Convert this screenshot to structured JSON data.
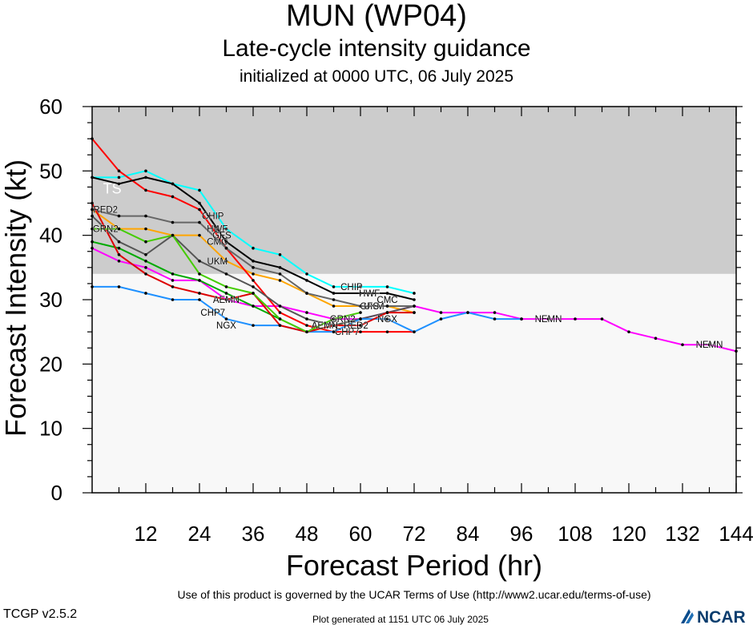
{
  "title": "MUN (WP04)",
  "subtitle": "Late-cycle intensity guidance",
  "initialized": "initialized at 0000 UTC, 06 July 2025",
  "footer": {
    "terms": "Use of this product is governed by the UCAR Terms of Use (http://www2.ucar.edu/terms-of-use)",
    "version": "TCGP v2.5.2",
    "generated": "Plot generated at 1151 UTC   06 July 2025",
    "logo_text": "NCAR"
  },
  "chart_data": {
    "type": "line",
    "title": "MUN (WP04)",
    "subtitle": "Late-cycle intensity guidance",
    "xlabel": "Forecast Period (hr)",
    "ylabel": "Forecast Intensity (kt)",
    "xlim": [
      0,
      144
    ],
    "ylim": [
      0,
      60
    ],
    "xticks": [
      12,
      24,
      36,
      48,
      60,
      72,
      84,
      96,
      108,
      120,
      132,
      144
    ],
    "yticks": [
      0,
      10,
      20,
      30,
      40,
      50,
      60
    ],
    "bands": [
      {
        "label": "TS",
        "from": 34,
        "to": 60,
        "color": "#cccccc"
      },
      {
        "label": "",
        "from": 0,
        "to": 34,
        "color": "#f8f8f8"
      }
    ],
    "series": [
      {
        "name": "CHIP",
        "color": "#00ffff",
        "label_at": [
          27,
          43
        ],
        "end_label_at": [
          58,
          32
        ],
        "x": [
          0,
          6,
          12,
          18,
          24,
          30,
          36,
          42,
          48,
          54,
          60,
          66,
          72
        ],
        "y": [
          49,
          49,
          50,
          48,
          47,
          41,
          38,
          37,
          34,
          32,
          32,
          32,
          31
        ]
      },
      {
        "name": "NEMN",
        "color": "#ff00ff",
        "label_at": [
          102,
          27
        ],
        "end_label_at": [
          138,
          23
        ],
        "x": [
          0,
          6,
          12,
          18,
          24,
          30,
          36,
          42,
          48,
          54,
          60,
          66,
          72,
          78,
          84,
          90,
          96,
          102,
          108,
          114,
          120,
          126,
          132,
          138,
          144
        ],
        "y": [
          38,
          36,
          35,
          33,
          33,
          30,
          29,
          29,
          28,
          27,
          27,
          28,
          29,
          28,
          28,
          28,
          27,
          27,
          27,
          27,
          25,
          24,
          23,
          23,
          22
        ]
      },
      {
        "name": "CMC",
        "color": "#ffa500",
        "label_at": [
          28,
          39
        ],
        "end_label_at": [
          66,
          30
        ],
        "x": [
          0,
          6,
          12,
          18,
          24,
          30,
          36,
          42,
          48,
          54,
          60,
          66,
          72
        ],
        "y": [
          44,
          41,
          41,
          40,
          40,
          36,
          34,
          33,
          31,
          29,
          29,
          29,
          28
        ]
      },
      {
        "name": "CHP7",
        "color": "#ff0000",
        "label_at": [
          27,
          28
        ],
        "end_label_at": [
          57,
          25
        ],
        "x": [
          0,
          6,
          12,
          18,
          24,
          30,
          36,
          42,
          48,
          54,
          60,
          66,
          72
        ],
        "y": [
          55,
          50,
          47,
          46,
          44,
          38,
          33,
          28,
          26,
          25,
          25,
          25,
          25
        ]
      },
      {
        "name": "AEMN",
        "color": "#00aa00",
        "label_at": [
          30,
          30
        ],
        "end_label_at": [
          52,
          26
        ],
        "x": [
          0,
          6,
          12,
          18,
          24,
          30,
          36,
          42,
          48,
          54,
          60
        ],
        "y": [
          39,
          38,
          36,
          34,
          33,
          31,
          29,
          27,
          25,
          26,
          27
        ]
      },
      {
        "name": "UKM",
        "color": "#555555",
        "label_at": [
          28,
          36
        ],
        "end_label_at": [
          63,
          29
        ],
        "x": [
          0,
          6,
          12,
          18,
          24,
          30,
          36,
          42,
          48,
          54,
          60,
          66,
          72
        ],
        "y": [
          43,
          39,
          37,
          40,
          36,
          34,
          32,
          29,
          27,
          26,
          27,
          28,
          29
        ]
      },
      {
        "name": "NGX",
        "color": "#1e90ff",
        "label_at": [
          30,
          26
        ],
        "end_label_at": [
          66,
          27
        ],
        "x": [
          0,
          6,
          12,
          18,
          24,
          30,
          36,
          42,
          48,
          54,
          60,
          66,
          72,
          78,
          84,
          90,
          96
        ],
        "y": [
          32,
          32,
          31,
          30,
          30,
          27,
          26,
          26,
          25,
          25,
          27,
          27,
          25,
          27,
          28,
          27,
          27
        ]
      },
      {
        "name": "HWF",
        "color": "#000000",
        "label_at": [
          28,
          41
        ],
        "end_label_at": [
          62,
          31
        ],
        "x": [
          0,
          6,
          12,
          18,
          24,
          30,
          36,
          42,
          48,
          54,
          60,
          66,
          72
        ],
        "y": [
          49,
          48,
          49,
          48,
          45,
          39,
          36,
          35,
          33,
          31,
          31,
          31,
          30
        ]
      },
      {
        "name": "GFS",
        "color": "#666666",
        "label_at": [
          29,
          40
        ],
        "end_label_at": [
          62,
          29
        ],
        "x": [
          0,
          6,
          12,
          18,
          24,
          30,
          36,
          42,
          48,
          54,
          60,
          66,
          72
        ],
        "y": [
          44,
          43,
          43,
          42,
          42,
          38,
          35,
          34,
          31,
          30,
          29,
          29,
          29
        ]
      },
      {
        "name": "RED2",
        "color": "#dd0000",
        "label_at": [
          3,
          44
        ],
        "end_label_at": [
          59,
          26
        ],
        "x": [
          0,
          6,
          12,
          18,
          24,
          30,
          36,
          42,
          48,
          54,
          60,
          66,
          72
        ],
        "y": [
          45,
          37,
          34,
          32,
          31,
          30,
          31,
          26,
          25,
          26,
          26,
          28,
          28
        ]
      },
      {
        "name": "GRN2",
        "color": "#44cc00",
        "label_at": [
          3,
          41
        ],
        "end_label_at": [
          56,
          27
        ],
        "x": [
          0,
          6,
          12,
          18,
          24,
          30,
          36,
          42,
          48,
          54,
          60
        ],
        "y": [
          41,
          41,
          39,
          40,
          34,
          32,
          31,
          27,
          25,
          27,
          28
        ]
      }
    ]
  }
}
